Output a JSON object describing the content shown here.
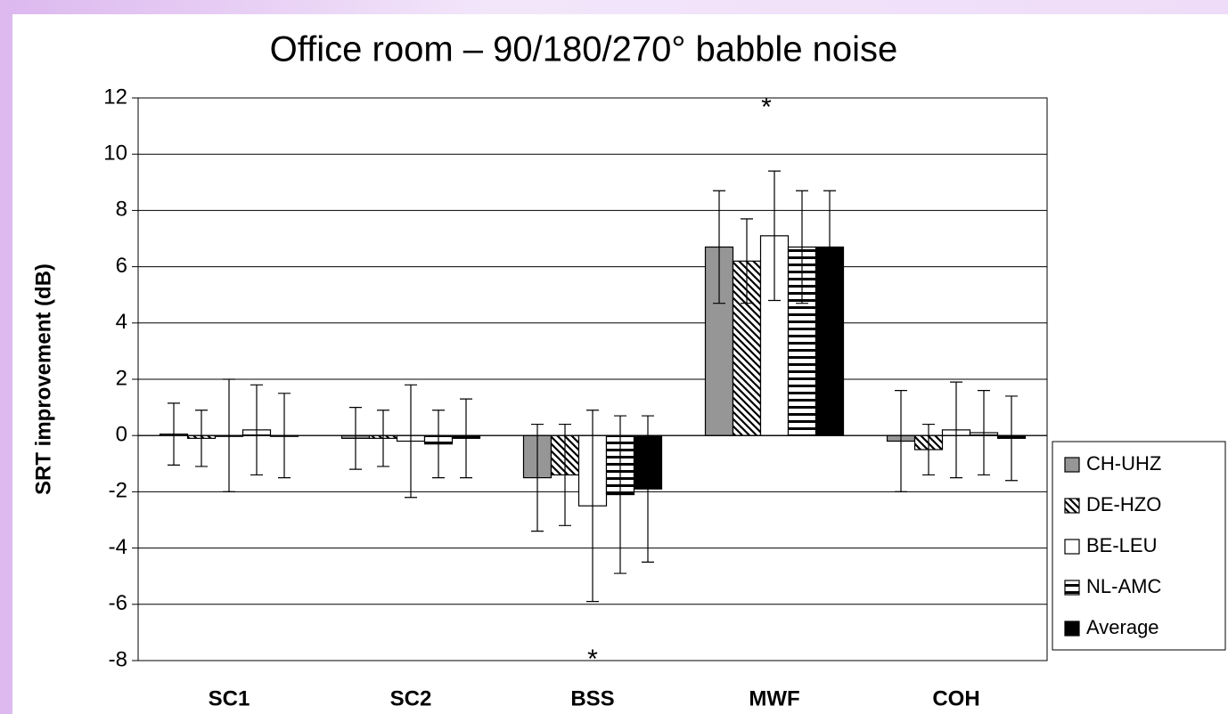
{
  "chart_data": {
    "type": "bar",
    "title": "Office room – 90/180/270° babble noise",
    "y_label": "SRT improvement (dB)",
    "categories": [
      "SC1",
      "SC2",
      "BSS",
      "MWF",
      "COH"
    ],
    "series": [
      {
        "name": "CH-UHZ",
        "color": "#969696",
        "pattern": "solid",
        "values": [
          0.05,
          -0.1,
          -1.5,
          6.7,
          -0.2
        ],
        "errors": [
          1.1,
          1.1,
          1.9,
          2.0,
          1.8
        ]
      },
      {
        "name": "DE-HZO",
        "color": "#000000",
        "pattern": "diagonal",
        "values": [
          -0.1,
          -0.1,
          -1.4,
          6.2,
          -0.5
        ],
        "errors": [
          1.0,
          1.0,
          1.8,
          1.5,
          0.9
        ]
      },
      {
        "name": "BE-LEU",
        "color": "#ffffff",
        "pattern": "solid",
        "values": [
          0,
          -0.2,
          -2.5,
          7.1,
          0.2
        ],
        "errors": [
          2.0,
          2.0,
          3.4,
          2.3,
          1.7
        ]
      },
      {
        "name": "NL-AMC",
        "color": "#000000",
        "pattern": "horizontal",
        "values": [
          0.2,
          -0.3,
          -2.1,
          6.7,
          0.1
        ],
        "errors": [
          1.6,
          1.2,
          2.8,
          2.0,
          1.5
        ]
      },
      {
        "name": "Average",
        "color": "#000000",
        "pattern": "solid",
        "values": [
          0,
          -0.1,
          -1.9,
          6.7,
          -0.1
        ],
        "errors": [
          1.5,
          1.4,
          2.6,
          2.0,
          1.5
        ]
      }
    ],
    "ylim": [
      -8,
      12
    ],
    "yticks": [
      -8,
      -6,
      -4,
      -2,
      0,
      2,
      4,
      6,
      8,
      10,
      12
    ],
    "grid": true,
    "legend": "right",
    "annotations": [
      {
        "text": "*"
      },
      {
        "text": "*"
      }
    ]
  }
}
